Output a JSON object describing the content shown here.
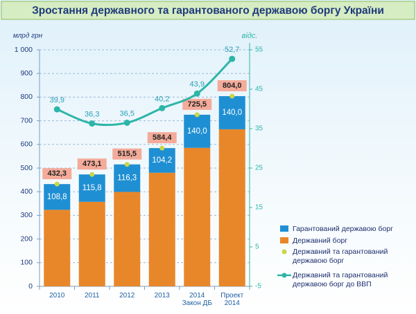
{
  "chart_data": {
    "type": "bar",
    "title": "Зростання державного та гарантованого державою боргу України",
    "y_label": "млрд грн",
    "y2_label": "відс.",
    "categories": [
      "2010",
      "2011",
      "2012",
      "2013",
      "2014 Закон ДБ",
      "Проект 2014"
    ],
    "stacked": true,
    "grid": true,
    "series": [
      {
        "name": "Гарантований державою борг",
        "type": "bar",
        "color": "#1f8fd3",
        "values": [
          108.8,
          115.8,
          116.3,
          104.2,
          140.0,
          140.0
        ],
        "value_labels": [
          "108,8",
          "115,8",
          "116,3",
          "104,2",
          "140,0",
          "140,0"
        ]
      },
      {
        "name": "Державний борг",
        "type": "bar",
        "color": "#e8872a",
        "values": [
          323.5,
          357.3,
          399.2,
          480.2,
          585.5,
          664.0
        ]
      },
      {
        "name": "Державний та гарантований державою борг",
        "type": "scatter",
        "color": "#c9d64b",
        "values": [
          432.3,
          473.1,
          515.5,
          584.4,
          725.5,
          804.0
        ],
        "value_labels": [
          "432,3",
          "473,1",
          "515,5",
          "584,4",
          "725,5",
          "804,0"
        ]
      },
      {
        "name": "Державний та гарантований державою борг до ВВП",
        "type": "line",
        "axis": "y2",
        "color": "#2db5a8",
        "values": [
          39.9,
          36.3,
          36.5,
          40.2,
          43.9,
          52.7
        ],
        "value_labels": [
          "39,9",
          "36,3",
          "36,5",
          "40,2",
          "43,9",
          "52,7"
        ]
      }
    ],
    "ylim": [
      0,
      1000
    ],
    "yticks": [
      0,
      100,
      200,
      300,
      400,
      500,
      600,
      700,
      800,
      900,
      {
        "value": 1000,
        "label": "1 000"
      }
    ],
    "y2lim": [
      -5,
      55
    ],
    "y2ticks": [
      -5,
      5,
      15,
      25,
      35,
      45,
      55
    ]
  }
}
